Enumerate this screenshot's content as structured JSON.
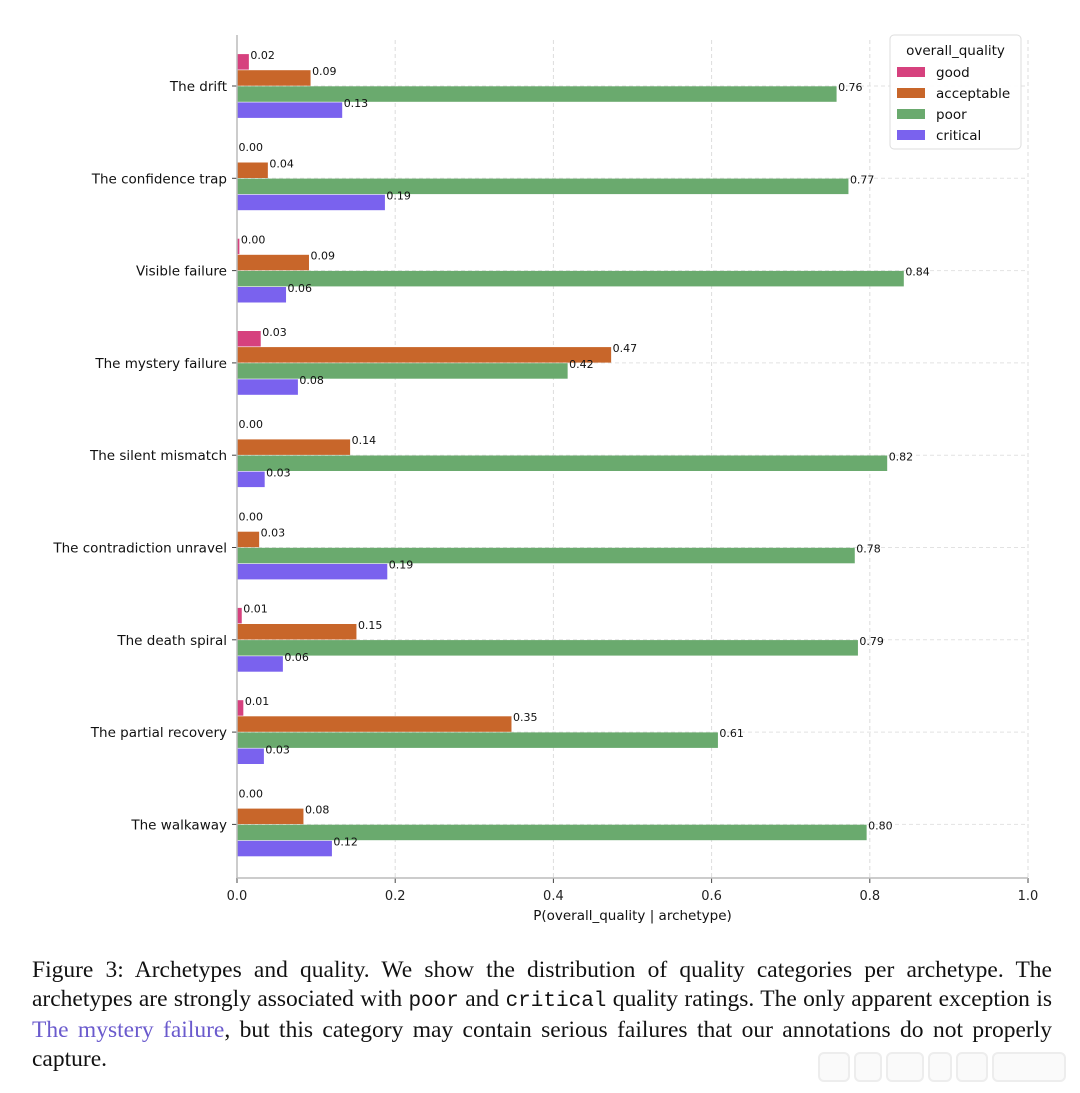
{
  "chart_data": {
    "type": "bar",
    "orientation": "horizontal",
    "categories": [
      "The drift",
      "The confidence trap",
      "Visible failure",
      "The mystery failure",
      "The silent mismatch",
      "The contradiction unravel",
      "The death spiral",
      "The partial recovery",
      "The walkaway"
    ],
    "series": [
      {
        "name": "good",
        "color": "#d6417e",
        "values": [
          0.015,
          0.0,
          0.003,
          0.03,
          0.0,
          0.0,
          0.006,
          0.008,
          0.0
        ],
        "labels": [
          "0.02",
          "0.00",
          "0.00",
          "0.03",
          "0.00",
          "0.00",
          "0.01",
          "0.01",
          "0.00"
        ]
      },
      {
        "name": "acceptable",
        "color": "#c8662a",
        "values": [
          0.093,
          0.039,
          0.091,
          0.473,
          0.143,
          0.028,
          0.151,
          0.347,
          0.084
        ],
        "labels": [
          "0.09",
          "0.04",
          "0.09",
          "0.47",
          "0.14",
          "0.03",
          "0.15",
          "0.35",
          "0.08"
        ]
      },
      {
        "name": "poor",
        "color": "#6aaa6e",
        "values": [
          0.758,
          0.773,
          0.843,
          0.418,
          0.822,
          0.781,
          0.785,
          0.608,
          0.796
        ],
        "labels": [
          "0.76",
          "0.77",
          "0.84",
          "0.42",
          "0.82",
          "0.78",
          "0.79",
          "0.61",
          "0.80"
        ]
      },
      {
        "name": "critical",
        "color": "#7a62ee",
        "values": [
          0.133,
          0.187,
          0.062,
          0.077,
          0.035,
          0.19,
          0.058,
          0.034,
          0.12
        ],
        "labels": [
          "0.13",
          "0.19",
          "0.06",
          "0.08",
          "0.03",
          "0.19",
          "0.06",
          "0.03",
          "0.12"
        ]
      }
    ],
    "xlabel": "P(overall_quality | archetype)",
    "ylabel": "",
    "xlim": [
      0.0,
      1.0
    ],
    "xticks": [
      0.0,
      0.2,
      0.4,
      0.6,
      0.8,
      1.0
    ],
    "xtick_labels": [
      "0.0",
      "0.2",
      "0.4",
      "0.6",
      "0.8",
      "1.0"
    ],
    "grid": true,
    "legend_title": "overall_quality",
    "legend_position": "top-right"
  },
  "caption": {
    "prefix": "Figure 3: Archetypes and quality. We show the distribution of quality categories per archetype. The archetypes are strongly associated with ",
    "term1": "poor",
    "mid": " and ",
    "term2": "critical",
    "mid2": " quality ratings. The only apparent exception is ",
    "link": "The mystery failure",
    "suffix": ", but this category may contain serious failures that our annotations do not properly capture."
  }
}
